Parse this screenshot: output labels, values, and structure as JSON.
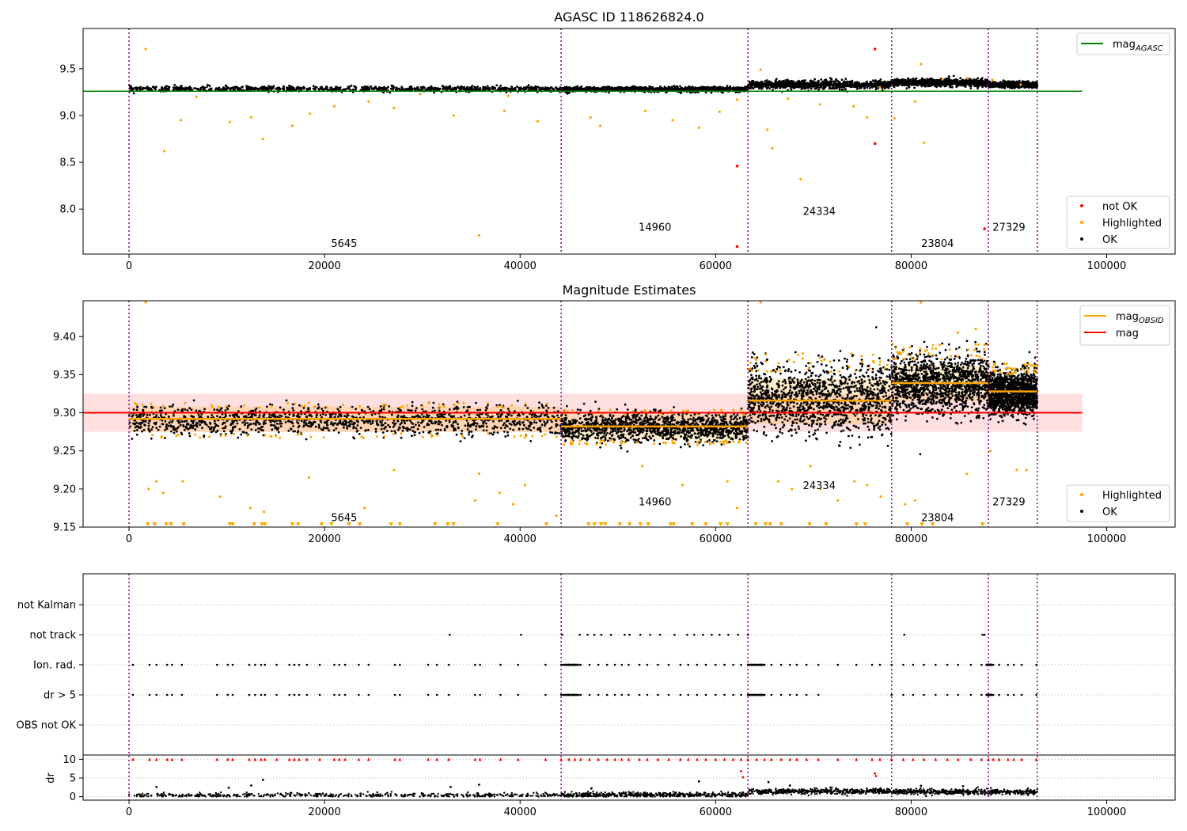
{
  "chart_data": [
    {
      "type": "scatter",
      "title": "AGASC ID 118626824.0",
      "xlim": [
        -4700,
        107000
      ],
      "ylim": [
        7.52,
        9.93
      ],
      "xticks": [
        "0",
        "20000",
        "40000",
        "60000",
        "80000",
        "100000"
      ],
      "xtick_values": [
        0,
        20000,
        40000,
        60000,
        80000,
        100000
      ],
      "yticks": [
        "8.0",
        "8.5",
        "9.0",
        "9.5"
      ],
      "ytick_values": [
        8.0,
        8.5,
        9.0,
        9.5
      ],
      "legend_upper": {
        "placement": "top-right",
        "entries": [
          {
            "label": "mag",
            "sub": "AGASC",
            "color": "#008000",
            "kind": "line"
          }
        ]
      },
      "legend_lower": {
        "placement": "bottom-right",
        "entries": [
          {
            "label": "not OK",
            "color": "#ff0000",
            "kind": "dot"
          },
          {
            "label": "Highlighted",
            "color": "#ffa500",
            "kind": "dot"
          },
          {
            "label": "OK",
            "color": "#000000",
            "kind": "dot"
          }
        ]
      },
      "mag_agasc": 9.26,
      "mag_agasc_range": [
        -4700,
        97500
      ],
      "obsid_boundaries": [
        0,
        44200,
        63300,
        78000,
        87900,
        92900
      ],
      "obsid_labels": [
        {
          "text": "5645",
          "x": 22000,
          "y": 7.64
        },
        {
          "text": "14960",
          "x": 53800,
          "y": 7.81
        },
        {
          "text": "24334",
          "x": 70600,
          "y": 7.98
        },
        {
          "text": "23804",
          "x": 82700,
          "y": 7.64
        },
        {
          "text": "27329",
          "x": 90000,
          "y": 7.81
        }
      ],
      "ok_segments": [
        {
          "x0": 0,
          "x1": 44200,
          "center": 9.285,
          "spread": 0.025
        },
        {
          "x0": 44200,
          "x1": 63300,
          "center": 9.28,
          "spread": 0.025
        },
        {
          "x0": 63300,
          "x1": 78000,
          "center": 9.33,
          "spread": 0.04
        },
        {
          "x0": 78000,
          "x1": 87900,
          "center": 9.35,
          "spread": 0.035
        },
        {
          "x0": 87900,
          "x1": 92900,
          "center": 9.33,
          "spread": 0.025
        }
      ],
      "highlighted_points": [
        [
          1700,
          9.71
        ],
        [
          3600,
          8.62
        ],
        [
          5300,
          8.95
        ],
        [
          10300,
          8.93
        ],
        [
          12500,
          8.98
        ],
        [
          13700,
          8.75
        ],
        [
          16700,
          8.89
        ],
        [
          18500,
          9.02
        ],
        [
          21000,
          9.1
        ],
        [
          24500,
          9.15
        ],
        [
          27100,
          9.08
        ],
        [
          33200,
          9.0
        ],
        [
          35800,
          7.72
        ],
        [
          38400,
          9.05
        ],
        [
          41800,
          8.94
        ],
        [
          47200,
          8.98
        ],
        [
          48200,
          8.89
        ],
        [
          52800,
          9.05
        ],
        [
          55600,
          8.95
        ],
        [
          58300,
          8.87
        ],
        [
          60400,
          9.04
        ],
        [
          62200,
          9.17
        ],
        [
          64600,
          9.49
        ],
        [
          65300,
          8.85
        ],
        [
          65800,
          8.65
        ],
        [
          67400,
          9.18
        ],
        [
          68700,
          8.32
        ],
        [
          70700,
          9.12
        ],
        [
          74100,
          9.1
        ],
        [
          75500,
          8.98
        ],
        [
          76800,
          9.3
        ],
        [
          78300,
          8.97
        ],
        [
          80400,
          9.15
        ],
        [
          81000,
          9.55
        ],
        [
          81300,
          8.71
        ],
        [
          83200,
          9.39
        ],
        [
          85700,
          9.4
        ],
        [
          88300,
          9.38
        ],
        [
          91200,
          9.33
        ],
        [
          6900,
          9.2
        ],
        [
          29800,
          9.23
        ],
        [
          38800,
          9.21
        ]
      ],
      "notok_points": [
        [
          62200,
          8.46
        ],
        [
          62200,
          7.6
        ],
        [
          76300,
          9.71
        ],
        [
          76300,
          8.7
        ],
        [
          87500,
          7.79
        ]
      ]
    },
    {
      "type": "scatter",
      "title": "Magnitude Estimates",
      "xlim": [
        -4700,
        107000
      ],
      "ylim": [
        9.15,
        9.447
      ],
      "xticks": [
        "0",
        "20000",
        "40000",
        "60000",
        "80000",
        "100000"
      ],
      "xtick_values": [
        0,
        20000,
        40000,
        60000,
        80000,
        100000
      ],
      "yticks": [
        "9.15",
        "9.20",
        "9.25",
        "9.30",
        "9.35",
        "9.40"
      ],
      "ytick_values": [
        9.15,
        9.2,
        9.25,
        9.3,
        9.35,
        9.4
      ],
      "legend_upper": {
        "placement": "top-right",
        "entries": [
          {
            "label": "mag",
            "sub": "OBSID",
            "color": "#ffa500",
            "kind": "line"
          },
          {
            "label": "mag",
            "sub": "",
            "color": "#ff0000",
            "kind": "line"
          }
        ]
      },
      "legend_lower": {
        "placement": "bottom-right",
        "entries": [
          {
            "label": "Highlighted",
            "color": "#ffa500",
            "kind": "dot"
          },
          {
            "label": "OK",
            "color": "#000000",
            "kind": "dot"
          }
        ]
      },
      "mag": 9.3,
      "mag_band": [
        9.275,
        9.325
      ],
      "mag_range": [
        -4700,
        97500
      ],
      "obsid_boundaries": [
        0,
        44200,
        63300,
        78000,
        87900,
        92900
      ],
      "obsid_labels": [
        {
          "text": "5645",
          "x": 22000,
          "y": 9.163
        },
        {
          "text": "14960",
          "x": 53800,
          "y": 9.184
        },
        {
          "text": "24334",
          "x": 70600,
          "y": 9.205
        },
        {
          "text": "23804",
          "x": 82700,
          "y": 9.163
        },
        {
          "text": "27329",
          "x": 90000,
          "y": 9.184
        }
      ],
      "obsid_mags": [
        {
          "x0": 0,
          "x1": 44200,
          "mag": 9.292,
          "lo": 9.275,
          "hi": 9.308
        },
        {
          "x0": 44200,
          "x1": 63300,
          "mag": 9.282,
          "lo": 9.265,
          "hi": 9.298
        },
        {
          "x0": 63300,
          "x1": 78000,
          "mag": 9.316,
          "lo": 9.285,
          "hi": 9.345
        },
        {
          "x0": 78000,
          "x1": 87900,
          "mag": 9.339,
          "lo": 9.315,
          "hi": 9.362
        },
        {
          "x0": 87900,
          "x1": 92900,
          "mag": 9.328,
          "lo": 9.31,
          "hi": 9.345
        }
      ],
      "ok_segments": [
        {
          "x0": 0,
          "x1": 44200,
          "center": 9.29,
          "spread": 0.017
        },
        {
          "x0": 44200,
          "x1": 63300,
          "center": 9.281,
          "spread": 0.017
        },
        {
          "x0": 63300,
          "x1": 78000,
          "center": 9.318,
          "spread": 0.04
        },
        {
          "x0": 78000,
          "x1": 87900,
          "center": 9.338,
          "spread": 0.035
        },
        {
          "x0": 87900,
          "x1": 92900,
          "center": 9.327,
          "spread": 0.025
        }
      ],
      "highlighted_points": [
        [
          1700,
          9.447
        ],
        [
          2000,
          9.2
        ],
        [
          2800,
          9.21
        ],
        [
          3500,
          9.195
        ],
        [
          5500,
          9.21
        ],
        [
          9300,
          9.19
        ],
        [
          12400,
          9.175
        ],
        [
          13800,
          9.17
        ],
        [
          18400,
          9.215
        ],
        [
          24100,
          9.175
        ],
        [
          27100,
          9.225
        ],
        [
          35400,
          9.185
        ],
        [
          35800,
          9.22
        ],
        [
          37900,
          9.195
        ],
        [
          39300,
          9.18
        ],
        [
          40500,
          9.205
        ],
        [
          43700,
          9.165
        ],
        [
          52500,
          9.23
        ],
        [
          56600,
          9.205
        ],
        [
          61200,
          9.21
        ],
        [
          62200,
          9.175
        ],
        [
          64600,
          9.447
        ],
        [
          66400,
          9.21
        ],
        [
          67800,
          9.2
        ],
        [
          69700,
          9.23
        ],
        [
          70700,
          9.2
        ],
        [
          72500,
          9.185
        ],
        [
          74200,
          9.21
        ],
        [
          75500,
          9.205
        ],
        [
          76900,
          9.19
        ],
        [
          79400,
          9.18
        ],
        [
          80400,
          9.185
        ],
        [
          81000,
          9.447
        ],
        [
          85700,
          9.22
        ],
        [
          88100,
          9.25
        ],
        [
          90800,
          9.225
        ],
        [
          91800,
          9.225
        ],
        [
          86600,
          9.41
        ],
        [
          84800,
          9.405
        ]
      ],
      "floor_marker_x": [
        1900,
        2600,
        3800,
        4300,
        5600,
        10300,
        10600,
        12800,
        13600,
        13900,
        16700,
        17300,
        19700,
        20700,
        22500,
        23600,
        26800,
        27700,
        31300,
        32600,
        33200,
        37700,
        42700,
        47000,
        47600,
        48300,
        48700,
        50200,
        51200,
        52300,
        53100,
        55400,
        55700,
        57600,
        59000,
        60500,
        61200,
        64100,
        65100,
        65600,
        66700,
        69600,
        71300,
        74400,
        75300,
        79600,
        81100,
        82200,
        87300
      ]
    },
    {
      "type": "scatter",
      "title": "",
      "xlim": [
        -4700,
        107000
      ],
      "xticks": [
        "0",
        "20000",
        "40000",
        "60000",
        "80000",
        "100000"
      ],
      "xtick_values": [
        0,
        20000,
        40000,
        60000,
        80000,
        100000
      ],
      "flag_labels": [
        "not Kalman",
        "not track",
        "Ion. rad.",
        "dr > 5",
        "OBS not OK"
      ],
      "dr_ylabel": "dr",
      "dr_yticks": [
        "0",
        "5",
        "10"
      ],
      "dr_ytick_values": [
        0,
        5,
        10
      ],
      "dr_ylim": [
        -0.5,
        10.5
      ],
      "obsid_boundaries": [
        0,
        44200,
        63300,
        78000,
        87900,
        92900
      ],
      "not_track_x": [
        32800,
        40100,
        44300,
        46100,
        46900,
        47600,
        48300,
        49300,
        50700,
        51200,
        52300,
        53300,
        54300,
        55800,
        57100,
        57800,
        58700,
        59600,
        60400,
        61300,
        62300,
        63300,
        79300,
        87300,
        87500
      ],
      "ion_rad_x": [
        400,
        2100,
        2800,
        3900,
        4400,
        5400,
        9000,
        10100,
        10600,
        12300,
        12900,
        13500,
        13900,
        15100,
        16400,
        16900,
        17400,
        18200,
        19500,
        21000,
        21500,
        22100,
        23500,
        24500,
        27200,
        27700,
        30600,
        31500,
        32700,
        35400,
        35900,
        38000,
        39800,
        42600,
        44200,
        45000,
        45600,
        46200,
        47100,
        48000,
        48900,
        49700,
        50400,
        51100,
        52200,
        53000,
        54100,
        55200,
        56400,
        57200,
        58100,
        59000,
        60000,
        60900,
        61800,
        62600,
        63300,
        64200,
        65000,
        65700,
        66700,
        67600,
        68300,
        69300,
        70500,
        72500,
        74400,
        76000,
        76800,
        78000,
        79200,
        80200,
        81300,
        82500,
        83700,
        84800,
        86100,
        87200,
        87900,
        88400,
        89000,
        89900,
        90500,
        91300,
        92800
      ],
      "dr5_x": [
        400,
        2100,
        2800,
        3900,
        4400,
        5400,
        9000,
        10100,
        10600,
        12300,
        12900,
        13500,
        13900,
        15100,
        16400,
        16900,
        17400,
        18200,
        19500,
        21000,
        21500,
        22100,
        23500,
        24500,
        27200,
        27700,
        30600,
        31500,
        32700,
        35400,
        35900,
        38000,
        39800,
        42600,
        44200,
        45000,
        45600,
        46200,
        47100,
        48000,
        48900,
        49700,
        50400,
        51100,
        52200,
        53000,
        54100,
        55200,
        56400,
        57200,
        58100,
        59000,
        60000,
        60900,
        61800,
        62600,
        63300,
        64200,
        65000,
        65700,
        66700,
        67600,
        68300,
        69300,
        70500,
        78000,
        79200,
        80200,
        81300,
        82500,
        83700,
        84800,
        86100,
        87200,
        87900,
        88400,
        89000,
        89900,
        90500,
        91300,
        92800
      ],
      "dr_outliers": [
        [
          62600,
          6.8
        ],
        [
          62800,
          5.2
        ],
        [
          76300,
          6.2
        ],
        [
          76400,
          5.5
        ],
        [
          13700,
          4.5
        ],
        [
          12500,
          3.0
        ],
        [
          35800,
          3.2
        ],
        [
          58300,
          4.1
        ],
        [
          65400,
          3.9
        ],
        [
          67600,
          3.0
        ],
        [
          81000,
          2.9
        ],
        [
          85300,
          2.8
        ],
        [
          2800,
          2.6
        ],
        [
          10200,
          2.4
        ],
        [
          32900,
          2.6
        ],
        [
          47300,
          2.2
        ]
      ]
    }
  ]
}
